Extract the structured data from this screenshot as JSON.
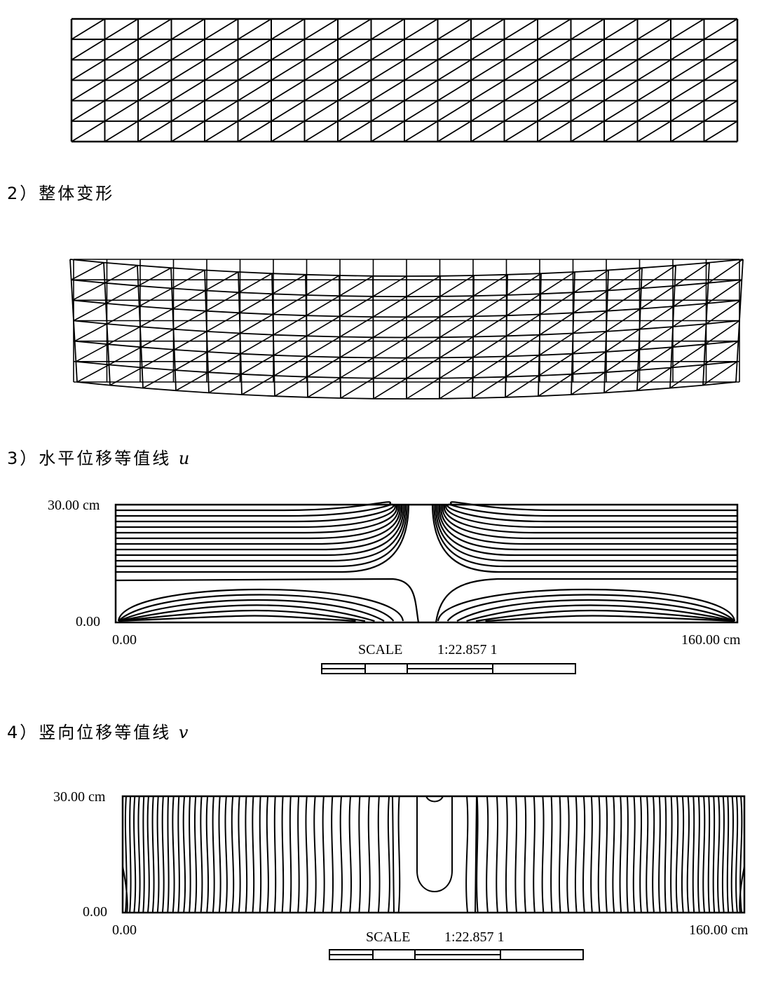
{
  "captions": {
    "deform": "2）整体变形",
    "u_contour": "3）水平位移等值线",
    "u_var": "u",
    "v_contour": "4）竖向位移等值线",
    "v_var": "v"
  },
  "u_plot": {
    "y_top_label": "30.00 cm",
    "y_bottom_label": "0.00",
    "x_left_label": "0.00",
    "x_right_label": "160.00 cm",
    "scale_label": "SCALE",
    "scale_value": "1:22.857 1"
  },
  "v_plot": {
    "y_top_label": "30.00 cm",
    "y_bottom_label": "0.00",
    "x_left_label": "0.00",
    "x_right_label": "160.00 cm",
    "scale_label": "SCALE",
    "scale_value": "1:22.857 1"
  },
  "mesh": {
    "columns": 20,
    "rows": 6
  }
}
